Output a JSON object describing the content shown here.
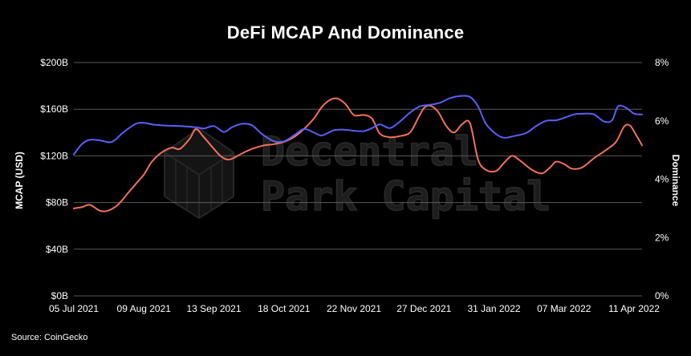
{
  "chart_data": {
    "type": "line",
    "title": "DeFi MCAP And Dominance",
    "source": "Source: CoinGecko",
    "xlabel": "",
    "ylabel_left": "MCAP (USD)",
    "ylabel_right": "Dominance",
    "x_start": "2021-07-05",
    "x_end": "2022-04-15",
    "x_ticks": [
      {
        "date": "2021-07-05",
        "label": "05 Jul 2021"
      },
      {
        "date": "2021-08-09",
        "label": "09 Aug 2021"
      },
      {
        "date": "2021-09-13",
        "label": "13 Sep 2021"
      },
      {
        "date": "2021-10-18",
        "label": "18 Oct 2021"
      },
      {
        "date": "2021-11-22",
        "label": "22 Nov 2021"
      },
      {
        "date": "2021-12-27",
        "label": "27 Dec 2021"
      },
      {
        "date": "2022-01-31",
        "label": "31 Jan 2022"
      },
      {
        "date": "2022-03-07",
        "label": "07 Mar 2022"
      },
      {
        "date": "2022-04-11",
        "label": "11 Apr 2022"
      }
    ],
    "y_left": {
      "min": 0,
      "max": 200,
      "ticks": [
        0,
        40,
        80,
        120,
        160,
        200
      ],
      "tick_labels": [
        "$0B",
        "$40B",
        "$80B",
        "$120B",
        "$160B",
        "$200B"
      ]
    },
    "y_right": {
      "min": 0,
      "max": 8,
      "ticks": [
        0,
        2,
        4,
        6,
        8
      ],
      "tick_labels": [
        "0%",
        "2%",
        "4%",
        "6%",
        "8%"
      ]
    },
    "grid": true,
    "series": [
      {
        "key": "mcap",
        "axis": "left",
        "color": "#f0725a",
        "points": [
          [
            "2021-07-05",
            75
          ],
          [
            "2021-07-09",
            76
          ],
          [
            "2021-07-13",
            78
          ],
          [
            "2021-07-18",
            73
          ],
          [
            "2021-07-22",
            73
          ],
          [
            "2021-07-27",
            78
          ],
          [
            "2021-08-01",
            88
          ],
          [
            "2021-08-05",
            96
          ],
          [
            "2021-08-09",
            104
          ],
          [
            "2021-08-13",
            115
          ],
          [
            "2021-08-18",
            123
          ],
          [
            "2021-08-23",
            127
          ],
          [
            "2021-08-27",
            126
          ],
          [
            "2021-09-01",
            135
          ],
          [
            "2021-09-04",
            143
          ],
          [
            "2021-09-08",
            136
          ],
          [
            "2021-09-13",
            126
          ],
          [
            "2021-09-17",
            119
          ],
          [
            "2021-09-21",
            117
          ],
          [
            "2021-09-27",
            122
          ],
          [
            "2021-10-02",
            126
          ],
          [
            "2021-10-08",
            129
          ],
          [
            "2021-10-13",
            130
          ],
          [
            "2021-10-18",
            132
          ],
          [
            "2021-10-23",
            136
          ],
          [
            "2021-10-28",
            143
          ],
          [
            "2021-11-02",
            152
          ],
          [
            "2021-11-06",
            162
          ],
          [
            "2021-11-10",
            168
          ],
          [
            "2021-11-14",
            169
          ],
          [
            "2021-11-18",
            164
          ],
          [
            "2021-11-22",
            155
          ],
          [
            "2021-11-27",
            155
          ],
          [
            "2021-12-01",
            152
          ],
          [
            "2021-12-05",
            139
          ],
          [
            "2021-12-10",
            136
          ],
          [
            "2021-12-15",
            137
          ],
          [
            "2021-12-20",
            140
          ],
          [
            "2021-12-24",
            152
          ],
          [
            "2021-12-27",
            161
          ],
          [
            "2021-12-30",
            163
          ],
          [
            "2022-01-03",
            158
          ],
          [
            "2022-01-07",
            146
          ],
          [
            "2022-01-11",
            140
          ],
          [
            "2022-01-15",
            147
          ],
          [
            "2022-01-19",
            148
          ],
          [
            "2022-01-23",
            117
          ],
          [
            "2022-01-27",
            108
          ],
          [
            "2022-02-01",
            107
          ],
          [
            "2022-02-05",
            114
          ],
          [
            "2022-02-09",
            120
          ],
          [
            "2022-02-13",
            116
          ],
          [
            "2022-02-19",
            108
          ],
          [
            "2022-02-24",
            105
          ],
          [
            "2022-02-28",
            110
          ],
          [
            "2022-03-03",
            115
          ],
          [
            "2022-03-07",
            113
          ],
          [
            "2022-03-11",
            109
          ],
          [
            "2022-03-16",
            110
          ],
          [
            "2022-03-22",
            118
          ],
          [
            "2022-03-28",
            125
          ],
          [
            "2022-04-02",
            132
          ],
          [
            "2022-04-06",
            145
          ],
          [
            "2022-04-09",
            146
          ],
          [
            "2022-04-12",
            138
          ],
          [
            "2022-04-15",
            129
          ]
        ]
      },
      {
        "key": "dominance",
        "axis": "right",
        "color": "#5b5ff5",
        "points": [
          [
            "2021-07-05",
            4.85
          ],
          [
            "2021-07-09",
            5.2
          ],
          [
            "2021-07-13",
            5.35
          ],
          [
            "2021-07-18",
            5.33
          ],
          [
            "2021-07-24",
            5.28
          ],
          [
            "2021-07-30",
            5.62
          ],
          [
            "2021-08-05",
            5.9
          ],
          [
            "2021-08-09",
            5.93
          ],
          [
            "2021-08-14",
            5.87
          ],
          [
            "2021-08-20",
            5.84
          ],
          [
            "2021-08-27",
            5.82
          ],
          [
            "2021-09-04",
            5.78
          ],
          [
            "2021-09-08",
            5.74
          ],
          [
            "2021-09-13",
            5.82
          ],
          [
            "2021-09-18",
            5.62
          ],
          [
            "2021-09-22",
            5.78
          ],
          [
            "2021-09-27",
            5.9
          ],
          [
            "2021-10-02",
            5.85
          ],
          [
            "2021-10-07",
            5.55
          ],
          [
            "2021-10-13",
            5.3
          ],
          [
            "2021-10-18",
            5.3
          ],
          [
            "2021-10-23",
            5.5
          ],
          [
            "2021-10-28",
            5.72
          ],
          [
            "2021-11-02",
            5.6
          ],
          [
            "2021-11-06",
            5.5
          ],
          [
            "2021-11-12",
            5.68
          ],
          [
            "2021-11-17",
            5.7
          ],
          [
            "2021-11-22",
            5.66
          ],
          [
            "2021-11-27",
            5.65
          ],
          [
            "2021-12-01",
            5.75
          ],
          [
            "2021-12-05",
            5.88
          ],
          [
            "2021-12-10",
            5.75
          ],
          [
            "2021-12-15",
            5.98
          ],
          [
            "2021-12-20",
            6.28
          ],
          [
            "2021-12-25",
            6.5
          ],
          [
            "2021-12-30",
            6.55
          ],
          [
            "2022-01-04",
            6.62
          ],
          [
            "2022-01-09",
            6.78
          ],
          [
            "2022-01-14",
            6.85
          ],
          [
            "2022-01-19",
            6.82
          ],
          [
            "2022-01-23",
            6.5
          ],
          [
            "2022-01-27",
            5.9
          ],
          [
            "2022-02-01",
            5.55
          ],
          [
            "2022-02-05",
            5.42
          ],
          [
            "2022-02-10",
            5.48
          ],
          [
            "2022-02-16",
            5.58
          ],
          [
            "2022-02-21",
            5.82
          ],
          [
            "2022-02-26",
            6.0
          ],
          [
            "2022-03-03",
            6.02
          ],
          [
            "2022-03-07",
            6.1
          ],
          [
            "2022-03-12",
            6.22
          ],
          [
            "2022-03-17",
            6.25
          ],
          [
            "2022-03-22",
            6.22
          ],
          [
            "2022-03-27",
            5.98
          ],
          [
            "2022-03-31",
            6.02
          ],
          [
            "2022-04-03",
            6.5
          ],
          [
            "2022-04-07",
            6.45
          ],
          [
            "2022-04-11",
            6.25
          ],
          [
            "2022-04-15",
            6.22
          ]
        ]
      }
    ]
  },
  "watermark": {
    "line1": "Decentral",
    "line2": "Park Capital"
  },
  "colors": {
    "background": "#000000",
    "grid": "#5a5a5a",
    "mcap_line": "#f0725a",
    "dominance_line": "#5b5ff5",
    "text": "#ffffff"
  }
}
